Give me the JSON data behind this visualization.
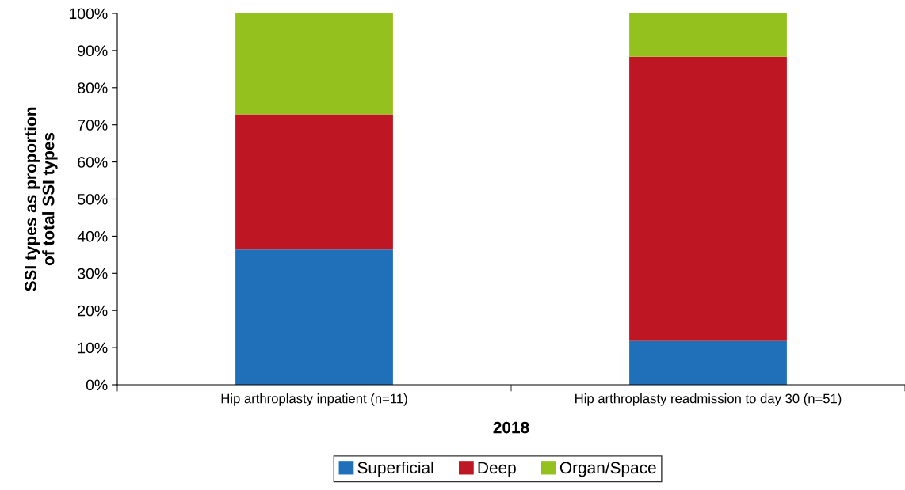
{
  "chart_data": {
    "type": "bar",
    "stacked": true,
    "xlabel": "2018",
    "ylabel": "SSI types as proportion\nof total SSI types",
    "categories": [
      "Hip arthroplasty inpatient (n=11)",
      "Hip arthroplasty readmission to day 30 (n=51)"
    ],
    "series": [
      {
        "name": "Superficial",
        "color": "#1f70b8",
        "values": [
          36.4,
          11.8
        ]
      },
      {
        "name": "Deep",
        "color": "#be1622",
        "values": [
          36.4,
          76.5
        ]
      },
      {
        "name": "Organ/Space",
        "color": "#95c11f",
        "values": [
          27.2,
          11.7
        ]
      }
    ],
    "ylim": [
      0,
      100
    ],
    "yticks": [
      {
        "value": 0,
        "label": "0%"
      },
      {
        "value": 10,
        "label": "10%"
      },
      {
        "value": 20,
        "label": "20%"
      },
      {
        "value": 30,
        "label": "30%"
      },
      {
        "value": 40,
        "label": "40%"
      },
      {
        "value": 50,
        "label": "50%"
      },
      {
        "value": 60,
        "label": "60%"
      },
      {
        "value": 70,
        "label": "70%"
      },
      {
        "value": 80,
        "label": "80%"
      },
      {
        "value": 90,
        "label": "90%"
      },
      {
        "value": 100,
        "label": "100%"
      }
    ],
    "grid": false,
    "legend": "bottom"
  }
}
